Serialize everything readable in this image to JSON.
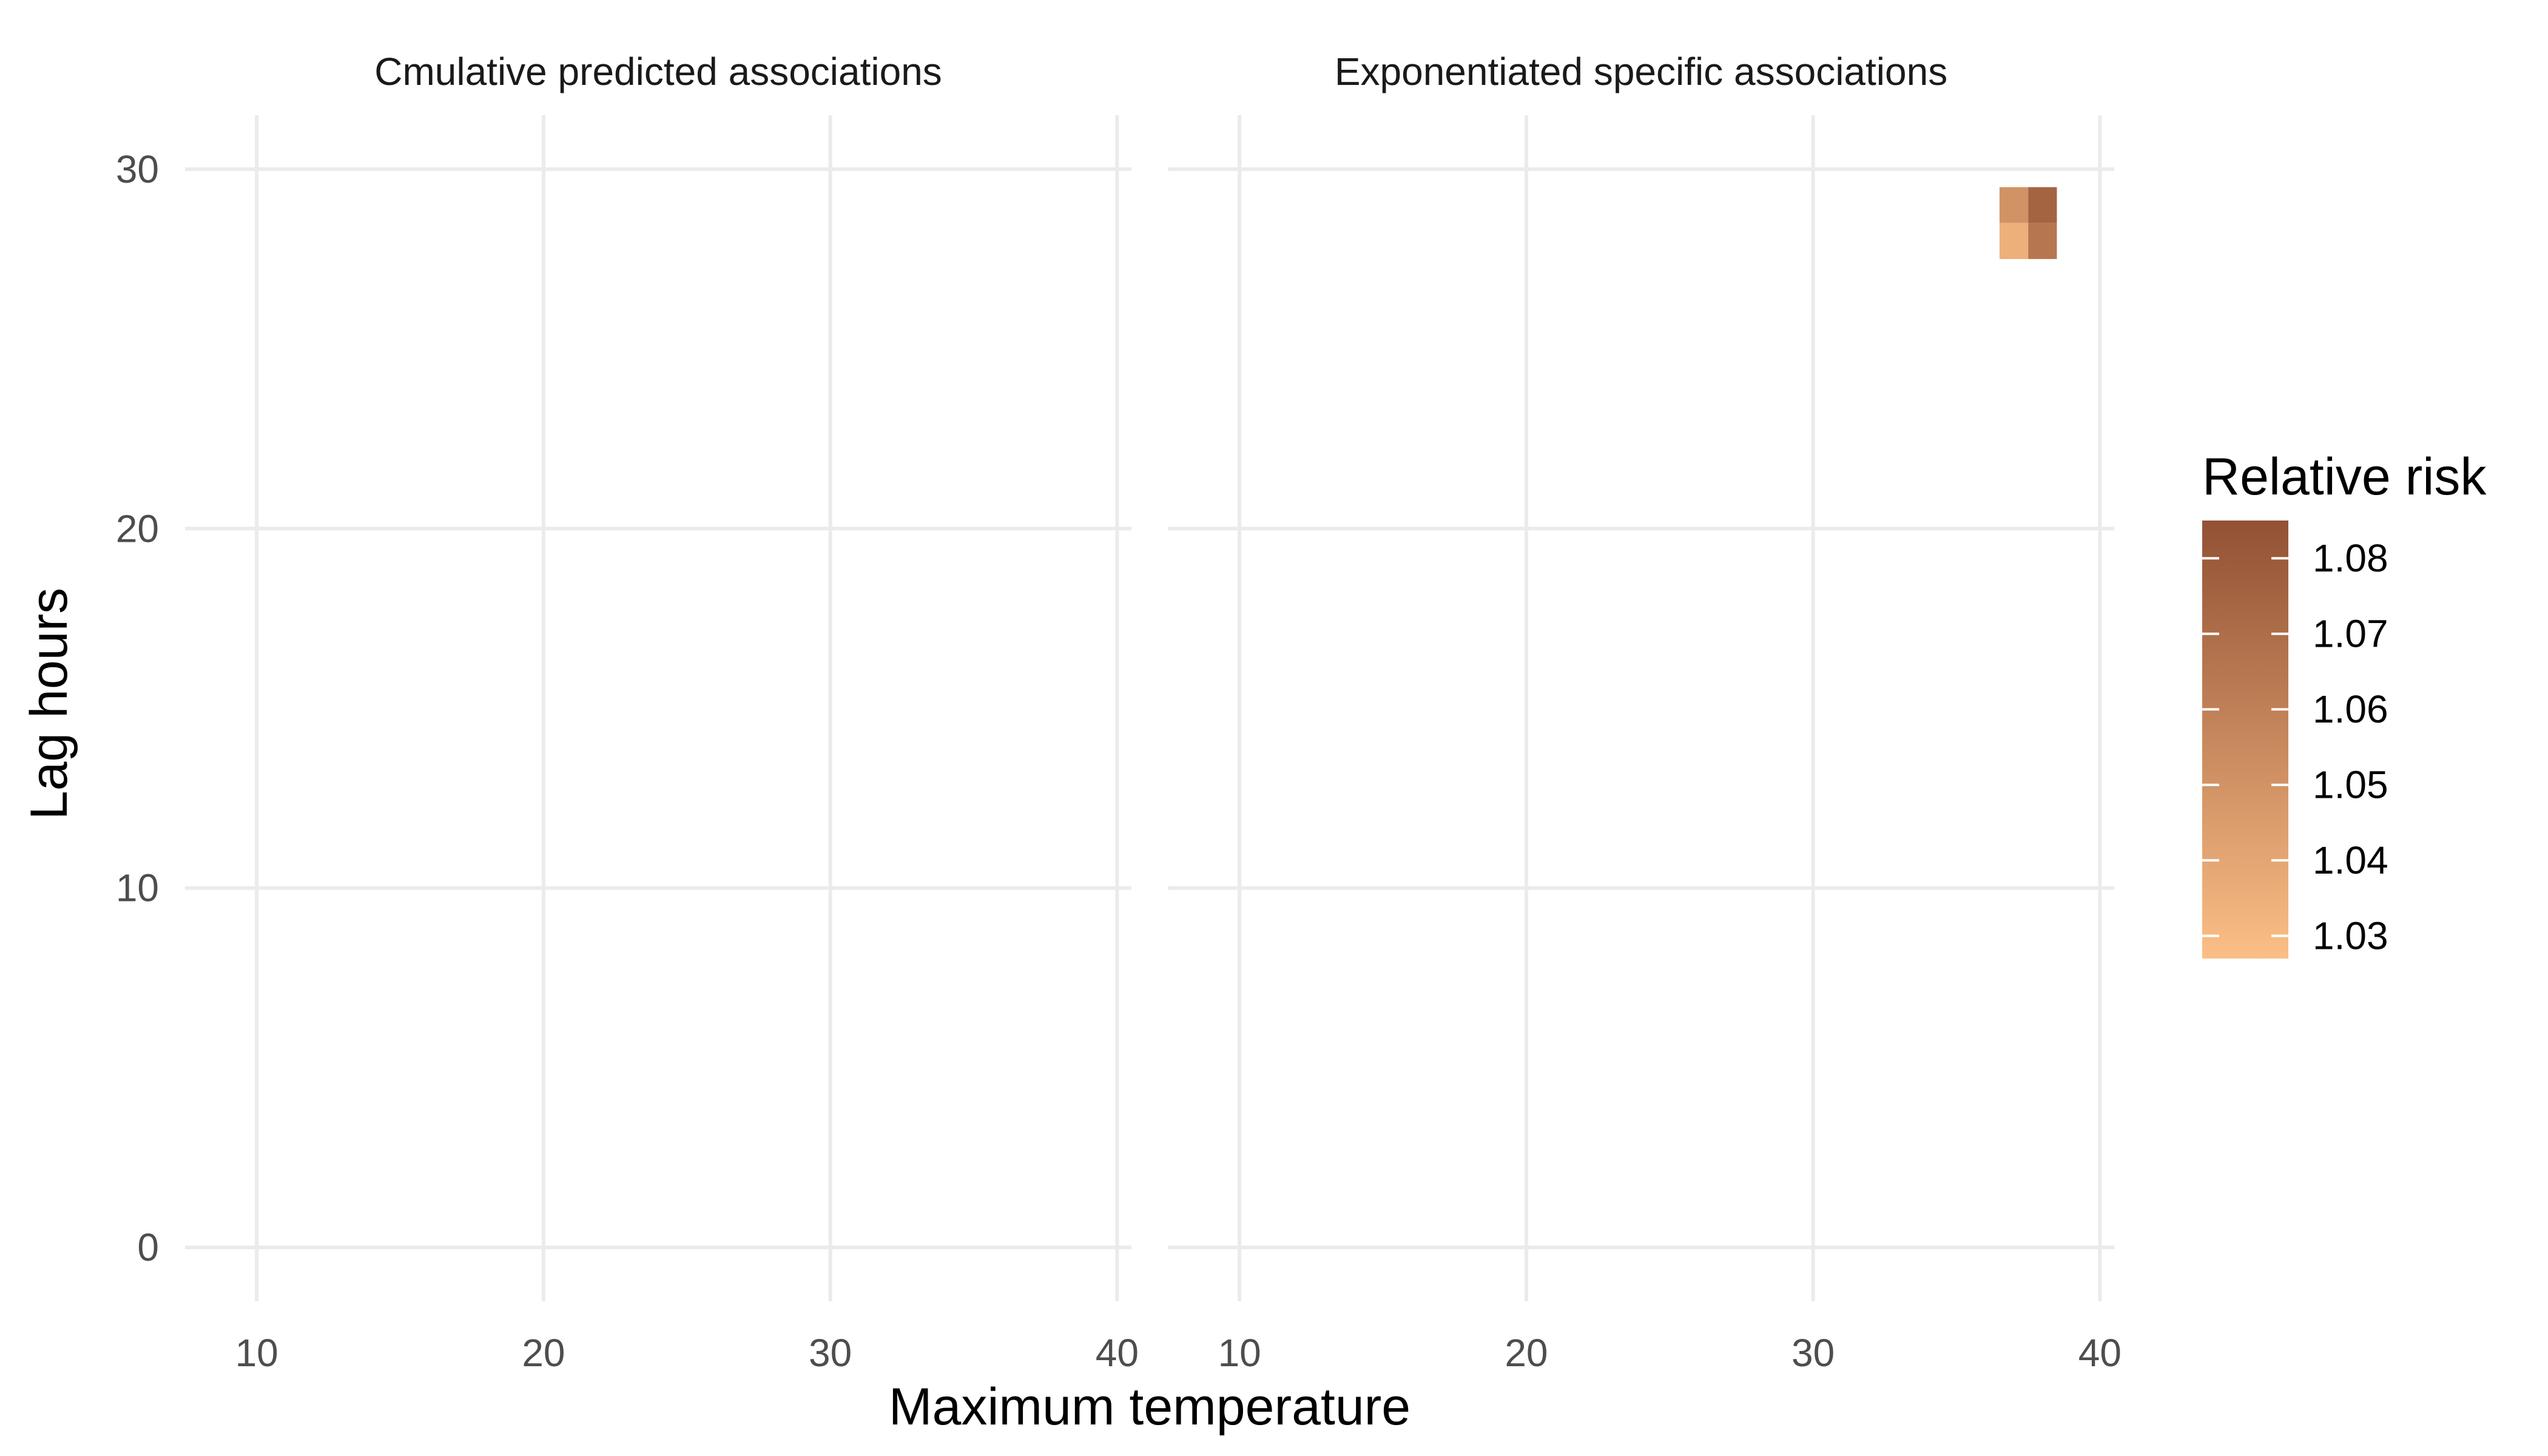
{
  "chart_data": {
    "type": "heatmap",
    "xlabel": "Maximum temperature",
    "ylabel": "Lag hours",
    "xlim": [
      7.5,
      40.5
    ],
    "ylim": [
      -1.5,
      31.5
    ],
    "xticks": [
      10,
      20,
      30,
      40
    ],
    "yticks": [
      0,
      10,
      20,
      30
    ],
    "grid": true,
    "legend": {
      "title": "Relative risk",
      "position": "right",
      "min": 1.027,
      "max": 1.085,
      "ticks": [
        1.03,
        1.04,
        1.05,
        1.06,
        1.07,
        1.08
      ],
      "low_color": "#FBBF86",
      "high_color": "#925134"
    },
    "panels": [
      {
        "title": "Cmulative predicted associations",
        "cells": []
      },
      {
        "title": "Exponentiated specific associations",
        "cells": [
          {
            "x": 37,
            "y": 29,
            "value": 1.05
          },
          {
            "x": 38,
            "y": 29,
            "value": 1.075
          },
          {
            "x": 37,
            "y": 28,
            "value": 1.035
          },
          {
            "x": 38,
            "y": 28,
            "value": 1.065
          }
        ]
      }
    ]
  }
}
